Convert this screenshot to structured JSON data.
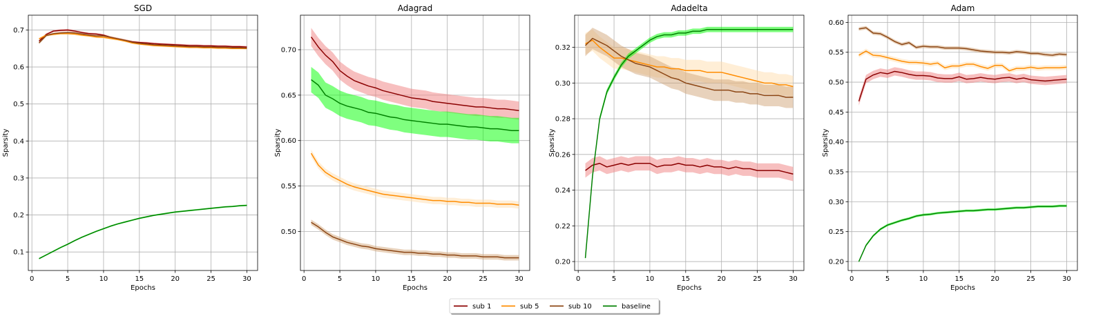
{
  "chart_data": {
    "type": "line",
    "legend": {
      "placement": "bottom-center",
      "entries": [
        {
          "label": "sub 1",
          "color": "#8b0000"
        },
        {
          "label": "sub 5",
          "color": "#ff8c00"
        },
        {
          "label": "sub 10",
          "color": "#8b4513"
        },
        {
          "label": "baseline",
          "color": "#008000"
        }
      ]
    },
    "band_colors": {
      "sub 1": "#f08080",
      "sub 5": "#ffdead",
      "sub 10": "#d2a679",
      "baseline": "#00ff00"
    },
    "grid": true,
    "panels": [
      {
        "title": "SGD",
        "xlabel": "Epochs",
        "ylabel": "Sparsity",
        "xlim": [
          -0.5,
          31.5
        ],
        "ylim": [
          0.05,
          0.74
        ],
        "xticks": [
          0,
          5,
          10,
          15,
          20,
          25,
          30
        ],
        "yticks": [
          0.1,
          0.2,
          0.3,
          0.4,
          0.5,
          0.6,
          0.7
        ],
        "ytick_labels": [
          "0.1",
          "0.2",
          "0.3",
          "0.4",
          "0.5",
          "0.6",
          "0.7"
        ],
        "x": [
          1,
          2,
          3,
          4,
          5,
          6,
          7,
          8,
          9,
          10,
          11,
          12,
          13,
          14,
          15,
          16,
          17,
          18,
          19,
          20,
          21,
          22,
          23,
          24,
          25,
          26,
          27,
          28,
          29,
          30
        ],
        "series": [
          {
            "name": "sub 1",
            "values": [
              0.67,
              0.688,
              0.697,
              0.699,
              0.7,
              0.697,
              0.693,
              0.69,
              0.689,
              0.686,
              0.68,
              0.676,
              0.672,
              0.668,
              0.666,
              0.665,
              0.663,
              0.662,
              0.661,
              0.66,
              0.659,
              0.658,
              0.658,
              0.657,
              0.657,
              0.656,
              0.656,
              0.655,
              0.655,
              0.654
            ],
            "band": 0.003
          },
          {
            "name": "sub 5",
            "values": [
              0.676,
              0.686,
              0.688,
              0.69,
              0.69,
              0.689,
              0.686,
              0.684,
              0.681,
              0.68,
              0.677,
              0.674,
              0.67,
              0.665,
              0.662,
              0.66,
              0.658,
              0.657,
              0.656,
              0.655,
              0.654,
              0.653,
              0.653,
              0.652,
              0.652,
              0.651,
              0.651,
              0.65,
              0.65,
              0.65
            ],
            "band": 0.003
          },
          {
            "name": "sub 10",
            "values": [
              0.665,
              0.685,
              0.69,
              0.692,
              0.693,
              0.692,
              0.689,
              0.686,
              0.684,
              0.684,
              0.68,
              0.676,
              0.672,
              0.667,
              0.664,
              0.662,
              0.66,
              0.659,
              0.658,
              0.657,
              0.656,
              0.655,
              0.655,
              0.654,
              0.654,
              0.653,
              0.653,
              0.652,
              0.652,
              0.651
            ],
            "band": 0.003
          },
          {
            "name": "baseline",
            "values": [
              0.082,
              0.092,
              0.102,
              0.112,
              0.121,
              0.131,
              0.14,
              0.148,
              0.156,
              0.163,
              0.17,
              0.176,
              0.181,
              0.186,
              0.191,
              0.195,
              0.199,
              0.202,
              0.205,
              0.208,
              0.21,
              0.212,
              0.214,
              0.216,
              0.218,
              0.22,
              0.222,
              0.223,
              0.225,
              0.226
            ],
            "band": 0.002
          }
        ]
      },
      {
        "title": "Adagrad",
        "xlabel": "Epochs",
        "ylabel": "Sparsity",
        "xlim": [
          -0.5,
          31.5
        ],
        "ylim": [
          0.457,
          0.738
        ],
        "xticks": [
          0,
          5,
          10,
          15,
          20,
          25,
          30
        ],
        "yticks": [
          0.5,
          0.55,
          0.6,
          0.65,
          0.7
        ],
        "ytick_labels": [
          "0.50",
          "0.55",
          "0.60",
          "0.65",
          "0.70"
        ],
        "x": [
          1,
          2,
          3,
          4,
          5,
          6,
          7,
          8,
          9,
          10,
          11,
          12,
          13,
          14,
          15,
          16,
          17,
          18,
          19,
          20,
          21,
          22,
          23,
          24,
          25,
          26,
          27,
          28,
          29,
          30
        ],
        "series": [
          {
            "name": "sub 1",
            "values": [
              0.714,
              0.703,
              0.694,
              0.687,
              0.677,
              0.671,
              0.666,
              0.663,
              0.66,
              0.658,
              0.655,
              0.653,
              0.651,
              0.649,
              0.647,
              0.646,
              0.645,
              0.643,
              0.642,
              0.641,
              0.64,
              0.639,
              0.638,
              0.637,
              0.637,
              0.636,
              0.635,
              0.635,
              0.634,
              0.633
            ],
            "band": 0.01
          },
          {
            "name": "sub 5",
            "values": [
              0.586,
              0.573,
              0.565,
              0.56,
              0.556,
              0.552,
              0.549,
              0.547,
              0.545,
              0.543,
              0.541,
              0.54,
              0.539,
              0.538,
              0.537,
              0.536,
              0.535,
              0.534,
              0.534,
              0.533,
              0.533,
              0.532,
              0.532,
              0.531,
              0.531,
              0.531,
              0.53,
              0.53,
              0.53,
              0.529
            ],
            "band": 0.004
          },
          {
            "name": "sub 10",
            "values": [
              0.51,
              0.505,
              0.499,
              0.494,
              0.491,
              0.488,
              0.486,
              0.484,
              0.483,
              0.481,
              0.48,
              0.479,
              0.478,
              0.477,
              0.477,
              0.476,
              0.476,
              0.475,
              0.475,
              0.474,
              0.474,
              0.473,
              0.473,
              0.473,
              0.472,
              0.472,
              0.472,
              0.471,
              0.471,
              0.471
            ],
            "band": 0.003
          },
          {
            "name": "baseline",
            "values": [
              0.667,
              0.661,
              0.65,
              0.646,
              0.641,
              0.638,
              0.636,
              0.634,
              0.631,
              0.63,
              0.628,
              0.626,
              0.625,
              0.623,
              0.622,
              0.621,
              0.62,
              0.619,
              0.618,
              0.618,
              0.617,
              0.616,
              0.615,
              0.615,
              0.614,
              0.613,
              0.613,
              0.612,
              0.611,
              0.611
            ],
            "band": 0.014
          }
        ]
      },
      {
        "title": "Adadelta",
        "xlabel": "Epochs",
        "ylabel": "Sparsity",
        "xlim": [
          -0.5,
          31.5
        ],
        "ylim": [
          0.195,
          0.338
        ],
        "xticks": [
          0,
          5,
          10,
          15,
          20,
          25,
          30
        ],
        "yticks": [
          0.2,
          0.22,
          0.24,
          0.26,
          0.28,
          0.3,
          0.32
        ],
        "ytick_labels": [
          "0.20",
          "0.22",
          "0.24",
          "0.26",
          "0.28",
          "0.30",
          "0.32"
        ],
        "x": [
          1,
          2,
          3,
          4,
          5,
          6,
          7,
          8,
          9,
          10,
          11,
          12,
          13,
          14,
          15,
          16,
          17,
          18,
          19,
          20,
          21,
          22,
          23,
          24,
          25,
          26,
          27,
          28,
          29,
          30
        ],
        "series": [
          {
            "name": "sub 1",
            "values": [
              0.251,
              0.254,
              0.255,
              0.253,
              0.254,
              0.255,
              0.254,
              0.255,
              0.255,
              0.255,
              0.253,
              0.254,
              0.254,
              0.255,
              0.254,
              0.254,
              0.253,
              0.254,
              0.253,
              0.253,
              0.252,
              0.253,
              0.252,
              0.252,
              0.251,
              0.251,
              0.251,
              0.251,
              0.25,
              0.249
            ],
            "band": 0.004
          },
          {
            "name": "sub 5",
            "values": [
              0.322,
              0.324,
              0.32,
              0.317,
              0.314,
              0.314,
              0.313,
              0.312,
              0.311,
              0.31,
              0.309,
              0.309,
              0.308,
              0.308,
              0.307,
              0.307,
              0.307,
              0.306,
              0.306,
              0.306,
              0.305,
              0.304,
              0.303,
              0.302,
              0.301,
              0.3,
              0.3,
              0.299,
              0.299,
              0.298
            ],
            "band": 0.006
          },
          {
            "name": "sub 10",
            "values": [
              0.321,
              0.325,
              0.323,
              0.321,
              0.318,
              0.315,
              0.313,
              0.311,
              0.31,
              0.309,
              0.307,
              0.305,
              0.303,
              0.302,
              0.3,
              0.299,
              0.298,
              0.297,
              0.296,
              0.296,
              0.296,
              0.295,
              0.295,
              0.294,
              0.294,
              0.293,
              0.293,
              0.293,
              0.292,
              0.292
            ],
            "band": 0.006
          },
          {
            "name": "baseline",
            "values": [
              0.202,
              0.248,
              0.28,
              0.295,
              0.303,
              0.31,
              0.315,
              0.318,
              0.321,
              0.324,
              0.326,
              0.327,
              0.327,
              0.328,
              0.328,
              0.329,
              0.329,
              0.33,
              0.33,
              0.33,
              0.33,
              0.33,
              0.33,
              0.33,
              0.33,
              0.33,
              0.33,
              0.33,
              0.33,
              0.33
            ],
            "band": 0.0015
          }
        ]
      },
      {
        "title": "Adam",
        "xlabel": "Epochs",
        "ylabel": "Sparsity",
        "xlim": [
          -0.5,
          31.5
        ],
        "ylim": [
          0.185,
          0.612
        ],
        "xticks": [
          0,
          5,
          10,
          15,
          20,
          25,
          30
        ],
        "yticks": [
          0.2,
          0.25,
          0.3,
          0.35,
          0.4,
          0.45,
          0.5,
          0.55,
          0.6
        ],
        "ytick_labels": [
          "0.20",
          "0.25",
          "0.30",
          "0.35",
          "0.40",
          "0.45",
          "0.50",
          "0.55",
          "0.60"
        ],
        "x": [
          1,
          2,
          3,
          4,
          5,
          6,
          7,
          8,
          9,
          10,
          11,
          12,
          13,
          14,
          15,
          16,
          17,
          18,
          19,
          20,
          21,
          22,
          23,
          24,
          25,
          26,
          27,
          28,
          29,
          30
        ],
        "series": [
          {
            "name": "sub 1",
            "values": [
              0.468,
              0.505,
              0.512,
              0.516,
              0.514,
              0.518,
              0.516,
              0.513,
              0.511,
              0.511,
              0.51,
              0.507,
              0.506,
              0.506,
              0.509,
              0.505,
              0.506,
              0.508,
              0.506,
              0.505,
              0.507,
              0.508,
              0.505,
              0.507,
              0.504,
              0.503,
              0.502,
              0.503,
              0.504,
              0.505
            ],
            "band": 0.007
          },
          {
            "name": "sub 5",
            "values": [
              0.545,
              0.552,
              0.545,
              0.544,
              0.541,
              0.538,
              0.535,
              0.533,
              0.533,
              0.532,
              0.53,
              0.532,
              0.524,
              0.527,
              0.527,
              0.53,
              0.53,
              0.526,
              0.523,
              0.528,
              0.528,
              0.519,
              0.523,
              0.523,
              0.525,
              0.523,
              0.524,
              0.524,
              0.524,
              0.525
            ],
            "band": 0.004
          },
          {
            "name": "sub 10",
            "values": [
              0.589,
              0.591,
              0.582,
              0.581,
              0.575,
              0.568,
              0.563,
              0.566,
              0.558,
              0.56,
              0.559,
              0.559,
              0.557,
              0.557,
              0.557,
              0.556,
              0.554,
              0.552,
              0.551,
              0.55,
              0.55,
              0.549,
              0.551,
              0.55,
              0.548,
              0.548,
              0.546,
              0.545,
              0.547,
              0.546
            ],
            "band": 0.003
          },
          {
            "name": "baseline",
            "values": [
              0.2,
              0.227,
              0.243,
              0.254,
              0.261,
              0.265,
              0.269,
              0.272,
              0.276,
              0.278,
              0.279,
              0.281,
              0.282,
              0.283,
              0.284,
              0.285,
              0.285,
              0.286,
              0.287,
              0.287,
              0.288,
              0.289,
              0.29,
              0.29,
              0.291,
              0.292,
              0.292,
              0.292,
              0.293,
              0.293
            ],
            "band": 0.002
          }
        ]
      }
    ]
  }
}
